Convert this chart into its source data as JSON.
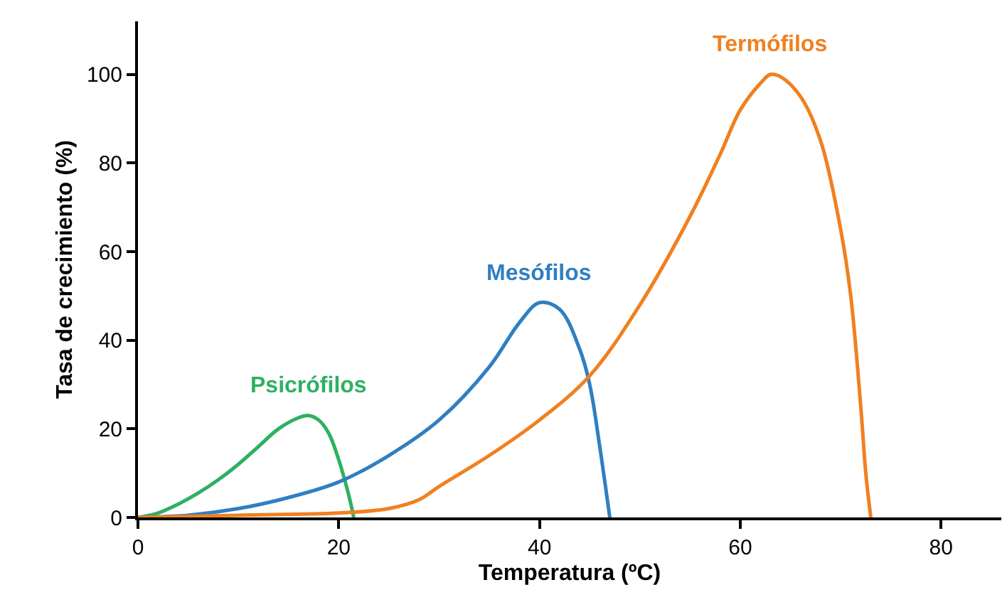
{
  "chart_data": {
    "type": "line",
    "xlabel": "Temperatura (ºC)",
    "ylabel": "Tasa de crecimiento (%)",
    "xlim": [
      0,
      86
    ],
    "ylim": [
      0,
      112
    ],
    "xticks": [
      0,
      20,
      40,
      60,
      80
    ],
    "yticks": [
      0,
      20,
      40,
      60,
      80,
      100
    ],
    "legend": false,
    "marker": "none",
    "line_style": "solid",
    "series": [
      {
        "name": "Psicrófilos",
        "color": "#2eb062",
        "x": [
          0,
          2,
          4,
          6,
          8,
          10,
          12,
          14,
          16,
          17,
          18,
          19,
          20,
          21,
          21.5
        ],
        "values": [
          0,
          1,
          3,
          5.5,
          8.5,
          12,
          16,
          20,
          22.5,
          23,
          22,
          19,
          13,
          5,
          0
        ]
      },
      {
        "name": "Mesófilos",
        "color": "#2f7fc1",
        "x": [
          0,
          5,
          10,
          15,
          20,
          25,
          30,
          35,
          38,
          40,
          42,
          44,
          45,
          46,
          47
        ],
        "values": [
          0,
          0.5,
          2,
          4.5,
          8,
          14,
          22,
          34,
          44,
          48.5,
          47,
          38,
          30,
          16,
          0
        ]
      },
      {
        "name": "Termófilos",
        "color": "#f08020",
        "x": [
          0,
          10,
          20,
          25,
          28,
          30,
          35,
          40,
          45,
          50,
          55,
          58,
          60,
          62,
          63,
          64,
          66,
          68,
          70,
          71,
          72,
          72.5,
          73
        ],
        "values": [
          0,
          0.5,
          1,
          2,
          4,
          7,
          14,
          22,
          32,
          48,
          68,
          82,
          92,
          98,
          100,
          99.5,
          95,
          85,
          65,
          50,
          25,
          10,
          0
        ]
      }
    ]
  }
}
